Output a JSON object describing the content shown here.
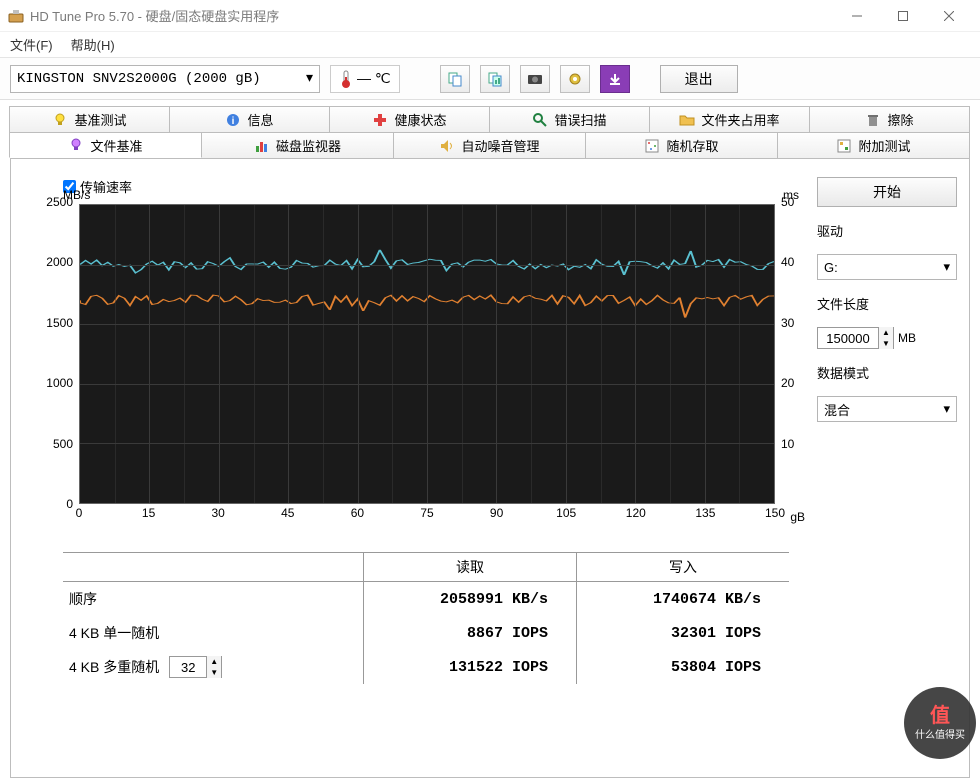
{
  "window": {
    "title": "HD Tune Pro 5.70 - 硬盘/固态硬盘实用程序",
    "min_tip": "Minimize",
    "max_tip": "Maximize",
    "close_tip": "Close"
  },
  "menu": {
    "file": "文件(F)",
    "help": "帮助(H)"
  },
  "toolbar": {
    "drive": "KINGSTON SNV2S2000G (2000 gB)",
    "temp": "— ℃",
    "exit": "退出"
  },
  "tabs_row1": [
    {
      "label": "基准测试",
      "icon": "bulb"
    },
    {
      "label": "信息",
      "icon": "info"
    },
    {
      "label": "健康状态",
      "icon": "plus"
    },
    {
      "label": "错误扫描",
      "icon": "search"
    },
    {
      "label": "文件夹占用率",
      "icon": "folder"
    },
    {
      "label": "擦除",
      "icon": "trash"
    }
  ],
  "tabs_row2": [
    {
      "label": "文件基准",
      "icon": "bulb2",
      "active": true
    },
    {
      "label": "磁盘监视器",
      "icon": "chart"
    },
    {
      "label": "自动噪音管理",
      "icon": "speaker"
    },
    {
      "label": "随机存取",
      "icon": "grid"
    },
    {
      "label": "附加测试",
      "icon": "grid2"
    }
  ],
  "checkbox": {
    "label": "传输速率",
    "checked": true
  },
  "chart": {
    "y_left_label": "MB/s",
    "y_right_label": "ms",
    "y_left_max": 2500,
    "y_left_step": 500,
    "y_left_ticks": [
      "0",
      "500",
      "1000",
      "1500",
      "2000",
      "2500"
    ],
    "y_right_ticks": [
      "10",
      "20",
      "30",
      "40",
      "50"
    ],
    "x_max": 150,
    "x_step": 15,
    "x_ticks": [
      "0",
      "15",
      "30",
      "45",
      "60",
      "75",
      "90",
      "105",
      "120",
      "135",
      "150"
    ],
    "x_unit": "gB",
    "bg": "#1a1a1a",
    "grid": "#3a3a3a",
    "read_color": "#5ac0d0",
    "write_color": "#e08030",
    "read_avg": 2000,
    "write_avg": 1700
  },
  "results": {
    "header_read": "读取",
    "header_write": "写入",
    "rows": [
      {
        "label": "顺序",
        "read": "2058991 KB/s",
        "write": "1740674 KB/s"
      },
      {
        "label": "4 KB 单一随机",
        "read": "8867 IOPS",
        "write": "32301 IOPS"
      },
      {
        "label": "4 KB 多重随机",
        "read": "131522 IOPS",
        "write": "53804 IOPS",
        "spinner": "32"
      }
    ]
  },
  "sidebar": {
    "start": "开始",
    "drive_label": "驱动",
    "drive_value": "G:",
    "length_label": "文件长度",
    "length_value": "150000",
    "length_unit": "MB",
    "mode_label": "数据模式",
    "mode_value": "混合"
  },
  "watermark": {
    "top": "值",
    "bottom": "什么值得买"
  }
}
